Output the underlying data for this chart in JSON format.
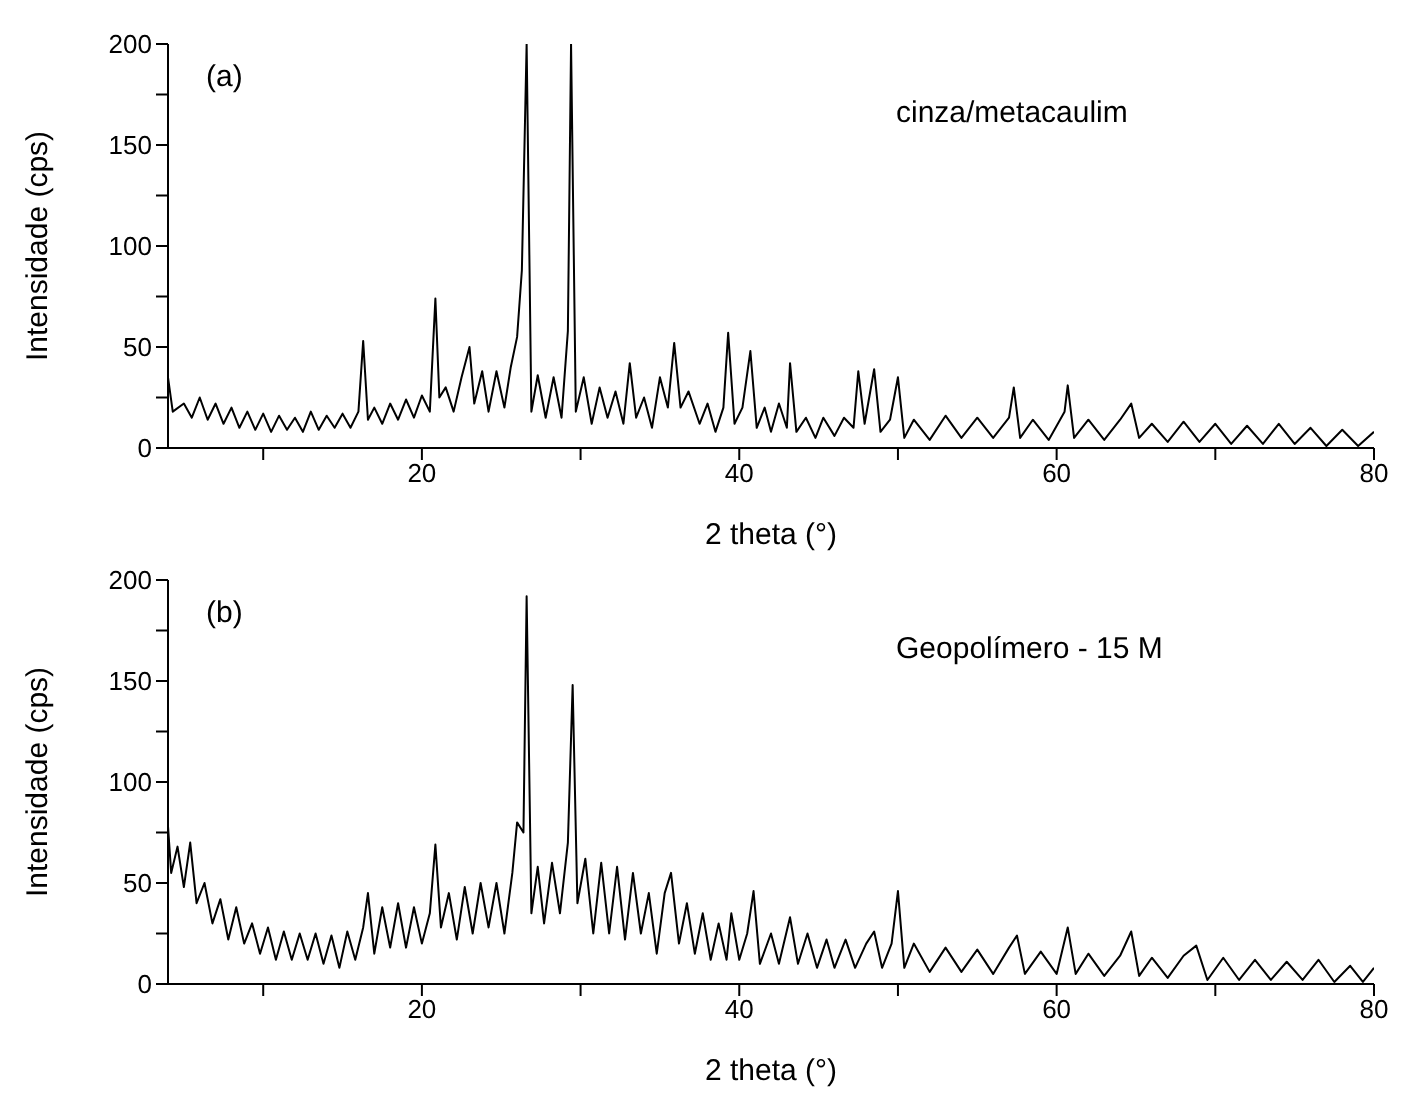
{
  "chart_data": [
    {
      "type": "line",
      "xlabel": "2 theta (°)",
      "ylabel": "Intensidade (cps)",
      "annotations": [
        "(a)",
        "cinza/metacaulim"
      ],
      "marker": "none",
      "line_style": "solid",
      "color": "#000000",
      "xlim": [
        4,
        80
      ],
      "xticks": [
        {
          "value": 10,
          "label": null
        },
        20,
        {
          "value": 30,
          "label": null
        },
        40,
        {
          "value": 50,
          "label": null
        },
        60,
        {
          "value": 70,
          "label": null
        },
        80
      ],
      "ylim": [
        0,
        200
      ],
      "yticks": [
        0,
        {
          "value": 25,
          "label": null
        },
        50,
        {
          "value": 75,
          "label": null
        },
        100,
        {
          "value": 125,
          "label": null
        },
        150,
        {
          "value": 175,
          "label": null
        },
        200
      ],
      "x": [
        4,
        4.3,
        5,
        5.5,
        6,
        6.5,
        7,
        7.5,
        8,
        8.5,
        9,
        9.5,
        10,
        10.5,
        11,
        11.5,
        12,
        12.5,
        13,
        13.5,
        14,
        14.5,
        15,
        15.5,
        16,
        16.3,
        16.6,
        17,
        17.5,
        18,
        18.5,
        19,
        19.5,
        20,
        20.5,
        20.85,
        21.1,
        21.5,
        22,
        22.5,
        23,
        23.3,
        23.8,
        24.2,
        24.7,
        25.2,
        25.6,
        26,
        26.3,
        26.6,
        26.9,
        27.3,
        27.8,
        28.3,
        28.8,
        29.2,
        29.4,
        29.7,
        30.2,
        30.7,
        31.2,
        31.7,
        32.2,
        32.7,
        33.1,
        33.5,
        34,
        34.5,
        35,
        35.5,
        35.9,
        36.3,
        36.8,
        37.5,
        38,
        38.5,
        39,
        39.3,
        39.7,
        40.2,
        40.7,
        41.1,
        41.6,
        42,
        42.5,
        43,
        43.2,
        43.6,
        44.2,
        44.8,
        45.3,
        46,
        46.6,
        47.2,
        47.5,
        47.9,
        48.5,
        48.9,
        49.5,
        50,
        50.4,
        51,
        52,
        53,
        54,
        55,
        56,
        57,
        57.3,
        57.7,
        58.5,
        59.5,
        60.5,
        60.7,
        61.1,
        62,
        63,
        64,
        64.7,
        65.2,
        66,
        67,
        68,
        69,
        70,
        71,
        72,
        73,
        74,
        75,
        76,
        77,
        78,
        79,
        80
      ],
      "values": [
        35,
        18,
        22,
        15,
        25,
        14,
        22,
        12,
        20,
        10,
        18,
        9,
        17,
        8,
        16,
        9,
        15,
        8,
        18,
        9,
        16,
        10,
        17,
        10,
        18,
        53,
        14,
        20,
        12,
        22,
        14,
        24,
        15,
        26,
        18,
        74,
        25,
        30,
        18,
        35,
        50,
        22,
        38,
        18,
        38,
        20,
        40,
        55,
        88,
        200,
        18,
        36,
        15,
        35,
        15,
        58,
        200,
        18,
        35,
        12,
        30,
        15,
        28,
        12,
        42,
        15,
        25,
        10,
        35,
        20,
        52,
        20,
        28,
        12,
        22,
        8,
        20,
        57,
        12,
        20,
        48,
        10,
        20,
        8,
        22,
        10,
        42,
        8,
        15,
        5,
        15,
        6,
        15,
        10,
        38,
        12,
        39,
        8,
        14,
        35,
        5,
        14,
        4,
        16,
        5,
        15,
        5,
        15,
        30,
        5,
        14,
        4,
        18,
        31,
        5,
        14,
        4,
        14,
        22,
        5,
        12,
        3,
        13,
        3,
        12,
        2,
        11,
        2,
        12,
        2,
        10,
        1,
        9,
        1,
        8
      ]
    },
    {
      "type": "line",
      "xlabel": "2 theta (°)",
      "ylabel": "Intensidade (cps)",
      "annotations": [
        "(b)",
        "Geopolímero - 15 M"
      ],
      "marker": "none",
      "line_style": "solid",
      "color": "#000000",
      "xlim": [
        4,
        80
      ],
      "xticks": [
        {
          "value": 10,
          "label": null
        },
        20,
        {
          "value": 30,
          "label": null
        },
        40,
        {
          "value": 50,
          "label": null
        },
        60,
        {
          "value": 70,
          "label": null
        },
        80
      ],
      "ylim": [
        0,
        200
      ],
      "yticks": [
        0,
        {
          "value": 25,
          "label": null
        },
        50,
        {
          "value": 75,
          "label": null
        },
        100,
        {
          "value": 125,
          "label": null
        },
        150,
        {
          "value": 175,
          "label": null
        },
        200
      ],
      "x": [
        4,
        4.2,
        4.6,
        5,
        5.4,
        5.8,
        6.3,
        6.8,
        7.3,
        7.8,
        8.3,
        8.8,
        9.3,
        9.8,
        10.3,
        10.8,
        11.3,
        11.8,
        12.3,
        12.8,
        13.3,
        13.8,
        14.3,
        14.8,
        15.3,
        15.8,
        16.3,
        16.6,
        17,
        17.5,
        18,
        18.5,
        19,
        19.5,
        20,
        20.5,
        20.85,
        21.2,
        21.7,
        22.2,
        22.7,
        23.2,
        23.7,
        24.2,
        24.7,
        25.2,
        25.7,
        26,
        26.4,
        26.6,
        26.9,
        27.3,
        27.7,
        28.2,
        28.7,
        29.2,
        29.5,
        29.8,
        30.3,
        30.8,
        31.3,
        31.8,
        32.3,
        32.8,
        33.3,
        33.8,
        34.3,
        34.8,
        35.3,
        35.7,
        36.2,
        36.7,
        37.2,
        37.7,
        38.2,
        38.7,
        39.2,
        39.5,
        40,
        40.5,
        40.9,
        41.3,
        42,
        42.5,
        43.2,
        43.7,
        44.3,
        44.9,
        45.5,
        46,
        46.7,
        47.3,
        48,
        48.5,
        49,
        49.6,
        50,
        50.4,
        51,
        52,
        53,
        54,
        55,
        56,
        57,
        57.5,
        58,
        59,
        60,
        60.7,
        61.2,
        62,
        63,
        64,
        64.7,
        65.2,
        66,
        67,
        68,
        68.8,
        69.5,
        70.5,
        71.5,
        72.5,
        73.5,
        74.5,
        75.5,
        76.5,
        77.5,
        78.5,
        79.3,
        80
      ],
      "values": [
        78,
        55,
        68,
        48,
        70,
        40,
        50,
        30,
        42,
        22,
        38,
        20,
        30,
        15,
        28,
        12,
        26,
        12,
        25,
        12,
        25,
        10,
        24,
        8,
        26,
        12,
        28,
        45,
        15,
        38,
        18,
        40,
        18,
        38,
        20,
        35,
        69,
        28,
        45,
        22,
        48,
        25,
        50,
        28,
        50,
        25,
        55,
        80,
        75,
        192,
        35,
        58,
        30,
        60,
        35,
        70,
        148,
        40,
        62,
        25,
        60,
        25,
        58,
        22,
        55,
        25,
        45,
        15,
        45,
        55,
        20,
        40,
        15,
        35,
        12,
        30,
        12,
        35,
        12,
        25,
        46,
        10,
        25,
        10,
        33,
        10,
        25,
        8,
        22,
        8,
        22,
        8,
        20,
        26,
        8,
        20,
        46,
        8,
        20,
        6,
        18,
        6,
        17,
        5,
        18,
        24,
        5,
        16,
        5,
        28,
        5,
        15,
        4,
        14,
        26,
        4,
        13,
        3,
        14,
        19,
        2,
        13,
        2,
        12,
        2,
        11,
        2,
        12,
        1,
        9,
        1,
        8
      ]
    }
  ]
}
